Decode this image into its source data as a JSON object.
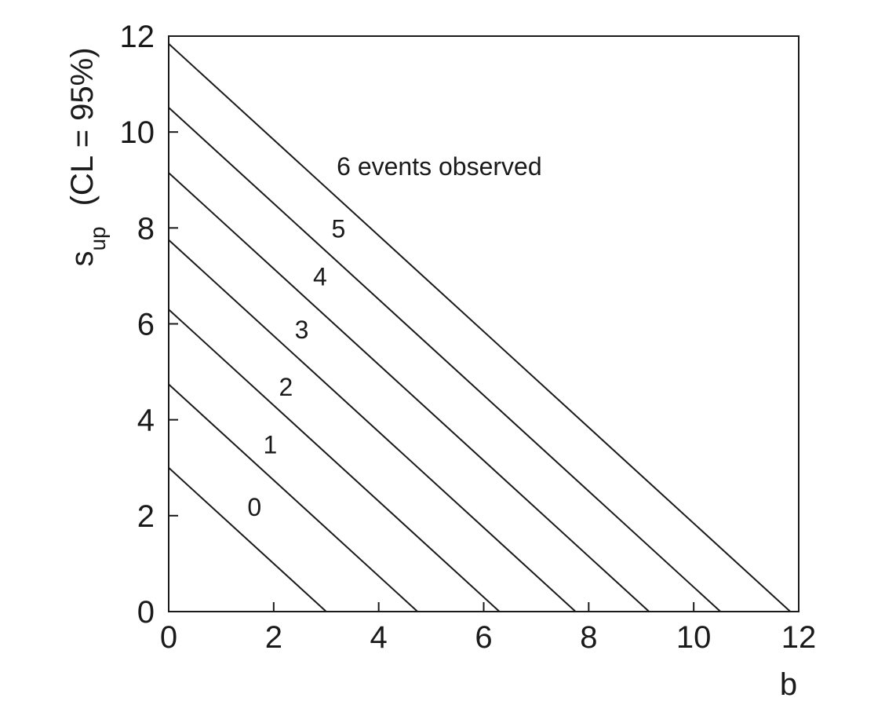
{
  "chart_data": {
    "type": "line",
    "title": "",
    "xlabel": "b",
    "ylabel_main": "s",
    "ylabel_sub": "up",
    "ylabel_suffix": "(CL = 95%)",
    "xlim": [
      0,
      12
    ],
    "ylim": [
      0,
      12
    ],
    "xticks": [
      "0",
      "2",
      "4",
      "6",
      "8",
      "10",
      "12"
    ],
    "yticks": [
      "0",
      "2",
      "4",
      "6",
      "8",
      "10",
      "12"
    ],
    "grid": false,
    "legend": "none",
    "line_color": "#1a1a1a",
    "series": [
      {
        "name": "0",
        "x": [
          0,
          3.0
        ],
        "y": [
          3.0,
          0
        ]
      },
      {
        "name": "1",
        "x": [
          0,
          4.74
        ],
        "y": [
          4.74,
          0
        ]
      },
      {
        "name": "2",
        "x": [
          0,
          6.3
        ],
        "y": [
          6.3,
          0
        ]
      },
      {
        "name": "3",
        "x": [
          0,
          7.75
        ],
        "y": [
          7.75,
          0
        ]
      },
      {
        "name": "4",
        "x": [
          0,
          9.15
        ],
        "y": [
          9.15,
          0
        ]
      },
      {
        "name": "5",
        "x": [
          0,
          10.51
        ],
        "y": [
          10.51,
          0
        ]
      },
      {
        "name": "6 events observed",
        "x": [
          0,
          11.84
        ],
        "y": [
          11.84,
          0
        ]
      }
    ],
    "annotations": [
      {
        "text": "0",
        "x": 1.5,
        "y": 2.0
      },
      {
        "text": "1",
        "x": 1.8,
        "y": 3.3
      },
      {
        "text": "2",
        "x": 2.1,
        "y": 4.5
      },
      {
        "text": "3",
        "x": 2.4,
        "y": 5.7
      },
      {
        "text": "4",
        "x": 2.75,
        "y": 6.8
      },
      {
        "text": "5",
        "x": 3.1,
        "y": 7.8
      },
      {
        "text": "6 events observed",
        "x": 3.2,
        "y": 9.1
      }
    ]
  }
}
